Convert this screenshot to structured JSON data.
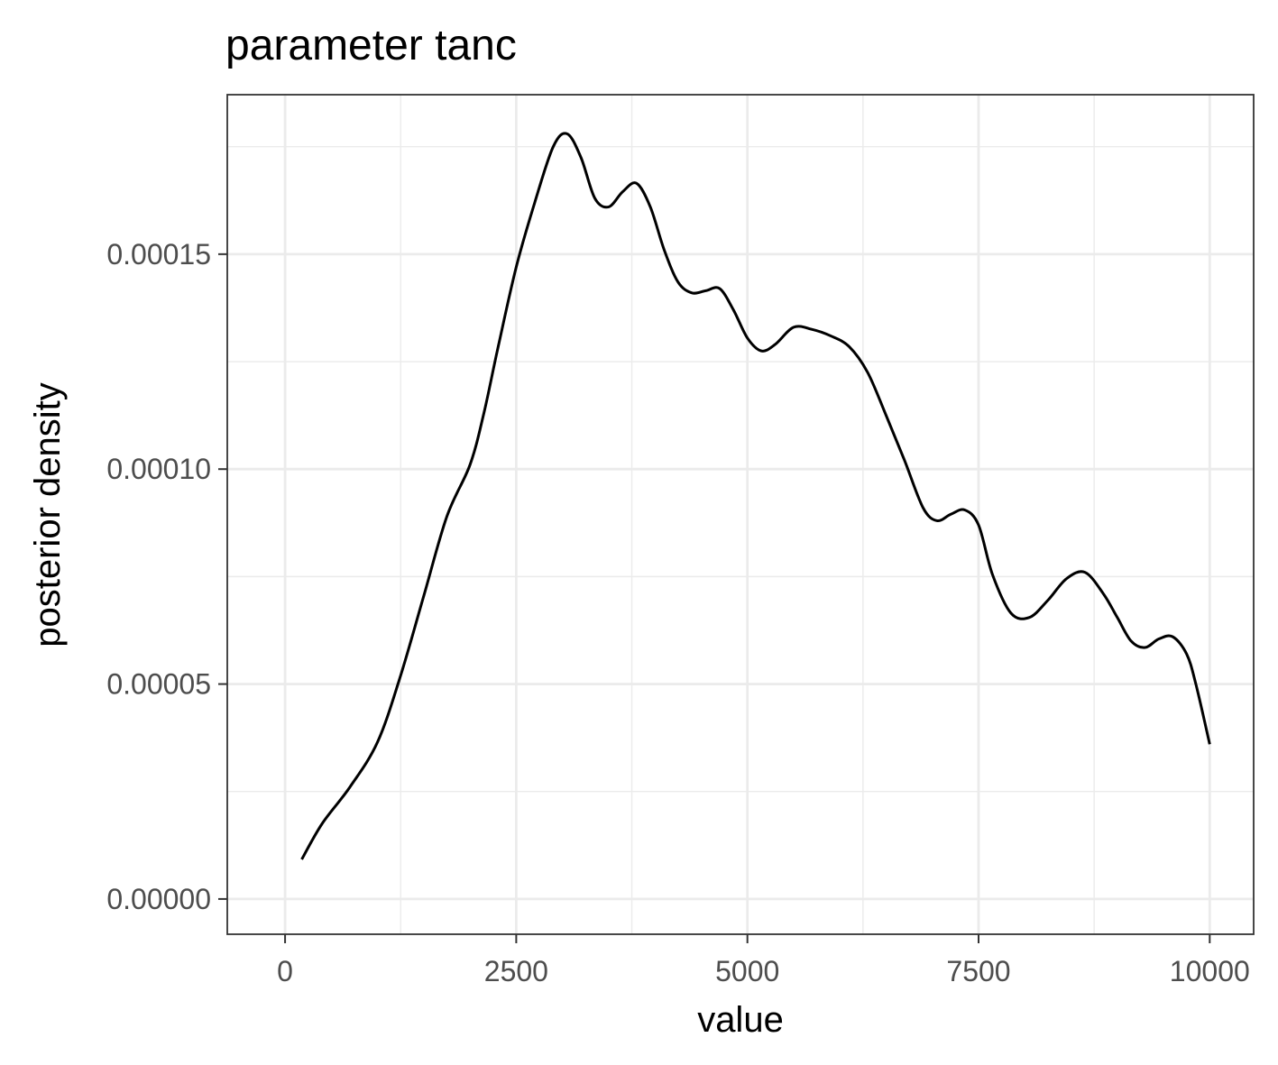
{
  "chart_data": {
    "type": "line",
    "title": "parameter tanc",
    "xlabel": "value",
    "ylabel": "posterior density",
    "xlim": [
      -625,
      10475
    ],
    "ylim": [
      -8.2e-06,
      0.0001871
    ],
    "x_ticks": [
      0,
      2500,
      5000,
      7500,
      10000
    ],
    "x_tick_labels": [
      "0",
      "2500",
      "5000",
      "7500",
      "10000"
    ],
    "x_minor": [
      1250,
      3750,
      6250,
      8750
    ],
    "y_ticks": [
      0,
      5e-05,
      0.0001,
      0.00015
    ],
    "y_tick_labels": [
      "0.00000",
      "0.00005",
      "0.00010",
      "0.00015"
    ],
    "y_minor": [
      2.5e-05,
      7.5e-05,
      0.000125,
      0.000175
    ],
    "grid": true,
    "line_color": "#000000",
    "panel_border_color": "#333333",
    "grid_color": "#ebebeb",
    "series": [
      {
        "x": [
          180,
          400,
          700,
          1000,
          1250,
          1500,
          1750,
          2000,
          2150,
          2300,
          2500,
          2700,
          2900,
          3050,
          3200,
          3350,
          3500,
          3650,
          3800,
          3950,
          4100,
          4250,
          4400,
          4550,
          4700,
          4850,
          5000,
          5150,
          5300,
          5500,
          5700,
          5900,
          6100,
          6300,
          6500,
          6700,
          6900,
          7050,
          7200,
          7350,
          7500,
          7650,
          7850,
          8050,
          8250,
          8450,
          8650,
          8850,
          9000,
          9150,
          9300,
          9450,
          9600,
          9750,
          9850,
          10000
        ],
        "y": [
          9.2e-06,
          1.75e-05,
          2.6e-05,
          3.65e-05,
          5.2e-05,
          7.05e-05,
          8.9e-05,
          0.000101,
          0.000113,
          0.000128,
          0.000147,
          0.000162,
          0.000175,
          0.000178,
          0.0001725,
          0.000163,
          0.000161,
          0.0001645,
          0.0001665,
          0.000161,
          0.000151,
          0.0001435,
          0.000141,
          0.0001415,
          0.000142,
          0.000137,
          0.0001305,
          0.0001275,
          0.000129,
          0.000133,
          0.0001325,
          0.000131,
          0.0001285,
          0.0001225,
          0.0001125,
          0.000102,
          9.1e-05,
          8.8e-05,
          8.95e-05,
          9.05e-05,
          8.7e-05,
          7.55e-05,
          6.65e-05,
          6.55e-05,
          6.95e-05,
          7.45e-05,
          7.6e-05,
          7.1e-05,
          6.55e-05,
          6e-05,
          5.85e-05,
          6.05e-05,
          6.1e-05,
          5.7e-05,
          5e-05,
          3.6e-05
        ]
      }
    ]
  }
}
